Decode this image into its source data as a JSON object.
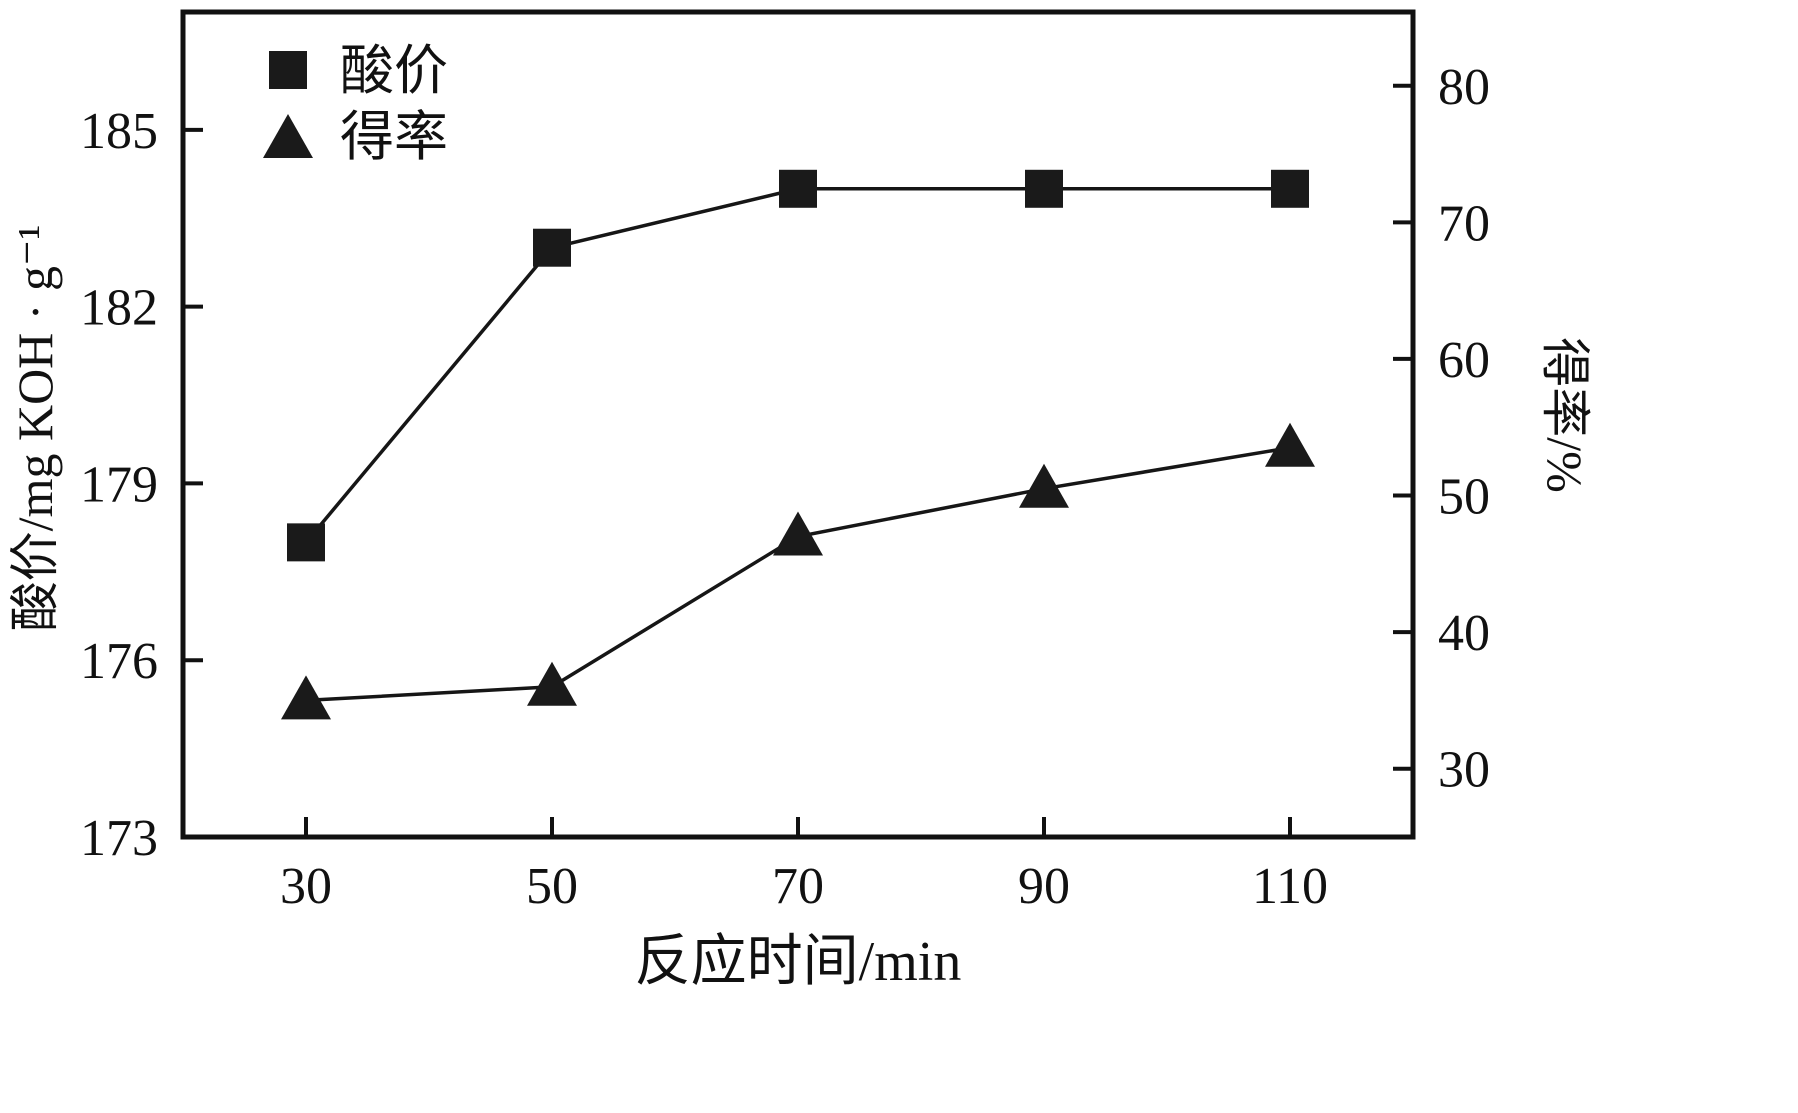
{
  "chart_data": {
    "type": "line",
    "x": [
      30,
      50,
      70,
      90,
      110
    ],
    "series": [
      {
        "name": "酸价",
        "axis": "left",
        "marker": "square",
        "values": [
          178,
          183,
          184,
          184,
          184
        ]
      },
      {
        "name": "得率",
        "axis": "right",
        "marker": "triangle",
        "values": [
          35,
          36,
          47,
          50.5,
          53.5
        ]
      }
    ],
    "title": "",
    "xlabel": "反应时间/min",
    "ylabel_left": "酸价/mg KOH · g⁻¹",
    "ylabel_right": "得率/%",
    "x_ticks": [
      30,
      50,
      70,
      90,
      110
    ],
    "left_ticks": [
      173,
      176,
      179,
      182,
      185
    ],
    "right_ticks": [
      30,
      40,
      50,
      60,
      70,
      80
    ],
    "xlim": [
      20,
      120
    ],
    "ylim_left": [
      173,
      187
    ],
    "ylim_right": [
      25,
      85.4
    ],
    "legend": [
      {
        "label": "酸价",
        "marker": "square"
      },
      {
        "label": "得率",
        "marker": "triangle"
      }
    ],
    "legend_position": "top-left",
    "grid": false,
    "colors": {
      "line": "#161616",
      "marker": "#1a1a1a",
      "axis": "#111111",
      "background": "#ffffff"
    }
  }
}
